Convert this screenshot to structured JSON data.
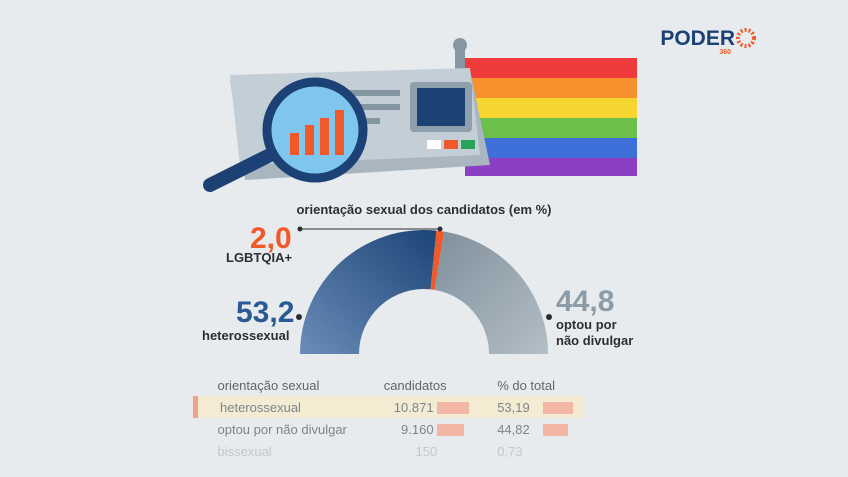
{
  "logo": {
    "name": "PODER",
    "sub": "360"
  },
  "chart_data": {
    "type": "half-donut",
    "title": "orientação sexual dos candidatos (em %)",
    "categories": [
      "heterossexual",
      "LGBTQIA+",
      "optou por não divulgar"
    ],
    "values": [
      53.2,
      2.0,
      44.8
    ],
    "value_labels": [
      "53,2",
      "2,0",
      "44,8"
    ],
    "colors": [
      "#2a5a93",
      "#f0592a",
      "#93a4b1"
    ]
  },
  "table": {
    "header": [
      "orientação sexual",
      "candidatos",
      "% do total"
    ],
    "rows": [
      [
        "heterossexual",
        "10.871",
        "53,19"
      ],
      [
        "optou por não divulgar",
        "9.160",
        "44,82"
      ],
      [
        "bissexual",
        "150",
        "0,73"
      ]
    ]
  }
}
